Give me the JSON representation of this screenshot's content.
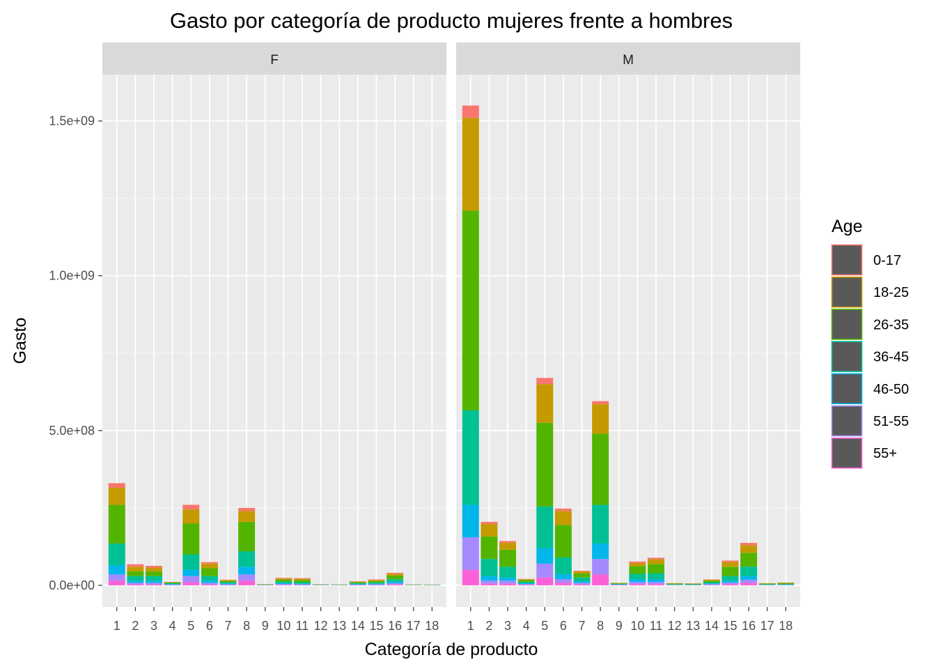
{
  "chart_data": {
    "type": "bar",
    "stacked": true,
    "title": "Gasto por categoría de producto mujeres frente a hombres",
    "xlabel": "Categoría de producto",
    "ylabel": "Gasto",
    "ylim": [
      -70000000,
      1650000000
    ],
    "yticks": [
      0,
      500000000,
      1000000000,
      1500000000
    ],
    "ytick_labels": [
      "0.0e+00",
      "5.0e+08",
      "1.0e+09",
      "1.5e+09"
    ],
    "categories": [
      "1",
      "2",
      "3",
      "4",
      "5",
      "6",
      "7",
      "8",
      "9",
      "10",
      "11",
      "12",
      "13",
      "14",
      "15",
      "16",
      "17",
      "18"
    ],
    "legend": {
      "title": "Age",
      "entries": [
        {
          "label": "0-17",
          "color": "#F8766D"
        },
        {
          "label": "18-25",
          "color": "#C49A00"
        },
        {
          "label": "26-35",
          "color": "#53B400"
        },
        {
          "label": "36-45",
          "color": "#00C094"
        },
        {
          "label": "46-50",
          "color": "#00B6EB"
        },
        {
          "label": "51-55",
          "color": "#A58AFF"
        },
        {
          "label": "55+",
          "color": "#FB61D7"
        }
      ]
    },
    "panels": [
      {
        "label": "F",
        "series": [
          {
            "name": "55+",
            "values": [
              15000000,
              3000000,
              3000000,
              1000000,
              10000000,
              3000000,
              1000000,
              15000000,
              500000,
              1500000,
              1000000,
              500000,
              300000,
              1000000,
              1000000,
              2500000,
              300000,
              300000
            ]
          },
          {
            "name": "51-55",
            "values": [
              20000000,
              5000000,
              5000000,
              1000000,
              20000000,
              5000000,
              2000000,
              20000000,
              500000,
              2500000,
              2000000,
              500000,
              300000,
              1000000,
              2000000,
              4000000,
              300000,
              300000
            ]
          },
          {
            "name": "46-50",
            "values": [
              30000000,
              7000000,
              7000000,
              2000000,
              20000000,
              7000000,
              3000000,
              25000000,
              500000,
              3000000,
              2000000,
              500000,
              400000,
              2000000,
              2000000,
              5000000,
              400000,
              400000
            ]
          },
          {
            "name": "36-45",
            "values": [
              70000000,
              15000000,
              15000000,
              2500000,
              50000000,
              15000000,
              4000000,
              50000000,
              1000000,
              5000000,
              5000000,
              700000,
              600000,
              3000000,
              4000000,
              8000000,
              600000,
              500000
            ]
          },
          {
            "name": "26-35",
            "values": [
              125000000,
              15000000,
              15000000,
              2500000,
              100000000,
              25000000,
              4000000,
              95000000,
              1000000,
              6000000,
              7000000,
              700000,
              800000,
              3000000,
              5000000,
              12000000,
              800000,
              700000
            ]
          },
          {
            "name": "18-25",
            "values": [
              55000000,
              15000000,
              12000000,
              1000000,
              45000000,
              15000000,
              3000000,
              35000000,
              500000,
              4000000,
              4000000,
              400000,
              400000,
              2000000,
              3000000,
              6000000,
              400000,
              300000
            ]
          },
          {
            "name": "0-17",
            "values": [
              15000000,
              8000000,
              6000000,
              1000000,
              15000000,
              5000000,
              1000000,
              10000000,
              300000,
              2000000,
              2000000,
              300000,
              200000,
              1000000,
              2000000,
              3000000,
              200000,
              200000
            ]
          }
        ]
      },
      {
        "label": "M",
        "series": [
          {
            "name": "55+",
            "values": [
              50000000,
              5000000,
              5000000,
              2000000,
              25000000,
              8000000,
              3000000,
              35000000,
              1000000,
              4000000,
              4000000,
              500000,
              400000,
              1500000,
              4000000,
              8000000,
              500000,
              500000
            ]
          },
          {
            "name": "51-55",
            "values": [
              105000000,
              10000000,
              10000000,
              2000000,
              45000000,
              12000000,
              5000000,
              50000000,
              1000000,
              7000000,
              7000000,
              800000,
              600000,
              2000000,
              5000000,
              10000000,
              700000,
              700000
            ]
          },
          {
            "name": "46-50",
            "values": [
              105000000,
              15000000,
              10000000,
              2500000,
              50000000,
              15000000,
              5000000,
              50000000,
              1000000,
              8000000,
              8000000,
              800000,
              600000,
              2500000,
              6000000,
              12000000,
              700000,
              800000
            ]
          },
          {
            "name": "36-45",
            "values": [
              305000000,
              55000000,
              35000000,
              5000000,
              135000000,
              55000000,
              12000000,
              125000000,
              1500000,
              18000000,
              20000000,
              1500000,
              1500000,
              4000000,
              15000000,
              30000000,
              1500000,
              2000000
            ]
          },
          {
            "name": "26-35",
            "values": [
              645000000,
              73000000,
              55000000,
              5000000,
              270000000,
              105000000,
              13000000,
              230000000,
              2000000,
              25000000,
              30000000,
              2000000,
              2000000,
              5000000,
              30000000,
              45000000,
              2000000,
              3000000
            ]
          },
          {
            "name": "18-25",
            "values": [
              300000000,
              40000000,
              23000000,
              3000000,
              125000000,
              45000000,
              7000000,
              95000000,
              1000000,
              10000000,
              15000000,
              1000000,
              1000000,
              3000000,
              15000000,
              25000000,
              1000000,
              1500000
            ]
          },
          {
            "name": "0-17",
            "values": [
              40000000,
              7000000,
              5000000,
              1000000,
              20000000,
              8000000,
              2000000,
              10000000,
              500000,
              5000000,
              5000000,
              400000,
              400000,
              1000000,
              5000000,
              7000000,
              400000,
              500000
            ]
          }
        ]
      }
    ]
  }
}
